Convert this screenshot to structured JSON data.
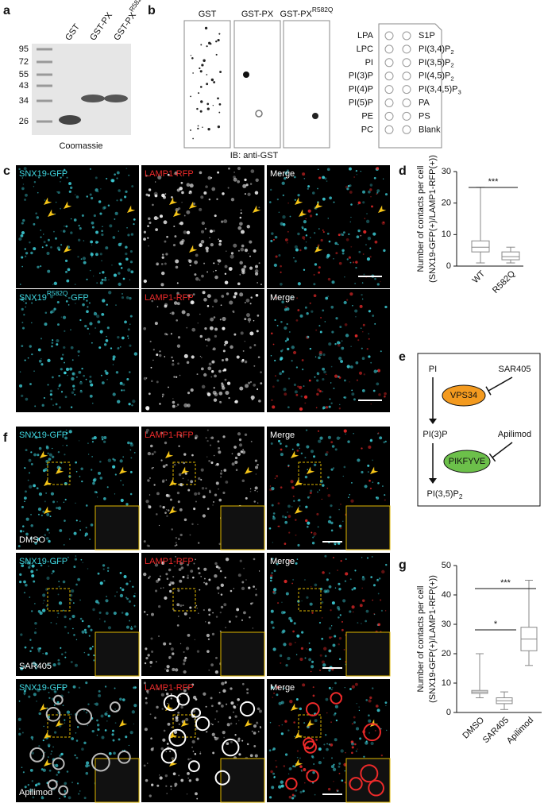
{
  "panel_labels": [
    "a",
    "b",
    "c",
    "d",
    "e",
    "f",
    "g"
  ],
  "gel": {
    "markers": [
      95,
      72,
      55,
      43,
      34,
      26
    ],
    "lanes": [
      {
        "text": "GST"
      },
      {
        "text": "GST-PX"
      },
      {
        "text": "GST-PX",
        "sup": "R582Q"
      }
    ],
    "caption": "Coomassie"
  },
  "blot": {
    "strips": [
      {
        "text": "GST"
      },
      {
        "text": "GST-PX"
      },
      {
        "text": "GST-PX",
        "sup": "R582Q"
      }
    ],
    "caption": "IB: anti-GST",
    "lipids_left": [
      {
        "text": "LPA"
      },
      {
        "text": "LPC"
      },
      {
        "text": "PI"
      },
      {
        "text": "PI(3)P"
      },
      {
        "text": "PI(4)P"
      },
      {
        "text": "PI(5)P"
      },
      {
        "text": "PE"
      },
      {
        "text": "PC"
      }
    ],
    "lipids_right": [
      {
        "text": "S1P"
      },
      {
        "text": "PI(3,4)P",
        "sub": "2"
      },
      {
        "text": "PI(3,5)P",
        "sub": "2"
      },
      {
        "text": "PI(4,5)P",
        "sub": "2"
      },
      {
        "text": "PI(3,4,5)P",
        "sub": "3"
      },
      {
        "text": "PA"
      },
      {
        "text": "PS"
      },
      {
        "text": "Blank"
      }
    ]
  },
  "panel_c": {
    "rows": [
      [
        {
          "text": "SNX19-GFP"
        },
        {
          "text": "LAMP1-RFP"
        },
        {
          "text": "Merge"
        }
      ],
      [
        {
          "text": "SNX19",
          "sup": "R582Q",
          "tail": "-GFP"
        },
        {
          "text": "LAMP1-RFP"
        },
        {
          "text": "Merge"
        }
      ]
    ]
  },
  "panel_f": {
    "rows": [
      {
        "channels": [
          {
            "text": "SNX19-GFP"
          },
          {
            "text": "LAMP1-RFP"
          },
          {
            "text": "Merge"
          }
        ],
        "treatment": "DMSO"
      },
      {
        "channels": [
          {
            "text": "SNX19-GFP"
          },
          {
            "text": "LAMP1-RFP"
          },
          {
            "text": "Merge"
          }
        ],
        "treatment": "SAR405"
      },
      {
        "channels": [
          {
            "text": "SNX19-GFP"
          },
          {
            "text": "LAMP1-RFP"
          },
          {
            "text": "Merge"
          }
        ],
        "treatment": "Apilimod"
      }
    ]
  },
  "pathway": {
    "nodes": [
      {
        "text": "PI"
      },
      {
        "text": "PI(3)P"
      },
      {
        "text": "PI(3,5)P",
        "sub": "2"
      }
    ],
    "enzymes": [
      "VPS34",
      "PIKFYVE"
    ],
    "inhibitors": [
      "SAR405",
      "Apilimod"
    ]
  },
  "chart_data": [
    {
      "type": "box",
      "ylabel": [
        "Number of contacts per cell",
        "(SNX19-GFP(+)/LAMP1-RFP(+))"
      ],
      "categories": [
        "WT",
        "R582Q"
      ],
      "boxes": [
        {
          "min": 1,
          "q1": 4.5,
          "median": 6,
          "q3": 8,
          "max": 25
        },
        {
          "min": 1,
          "q1": 2,
          "median": 3,
          "q3": 4.5,
          "max": 6
        }
      ],
      "ylim": [
        0,
        30
      ],
      "yticks": [
        0,
        10,
        20,
        30
      ],
      "color": "#888888",
      "annotations": [
        "***"
      ]
    },
    {
      "type": "box",
      "ylabel": [
        "Number of contacts per cell",
        "(SNX19-GFP(+)/LAMP1-RFP(+))"
      ],
      "categories": [
        "DMSO",
        "SAR405",
        "Apilimod"
      ],
      "boxes": [
        {
          "min": 5,
          "q1": 6.5,
          "median": 7,
          "q3": 7.5,
          "max": 20
        },
        {
          "min": 1,
          "q1": 3,
          "median": 4,
          "q3": 5,
          "max": 7
        },
        {
          "min": 16,
          "q1": 21,
          "median": 25,
          "q3": 29,
          "max": 45
        }
      ],
      "ylim": [
        0,
        50
      ],
      "yticks": [
        0,
        10,
        20,
        30,
        40,
        50
      ],
      "color": "#888888",
      "annotations": [
        "*",
        "***"
      ]
    }
  ]
}
